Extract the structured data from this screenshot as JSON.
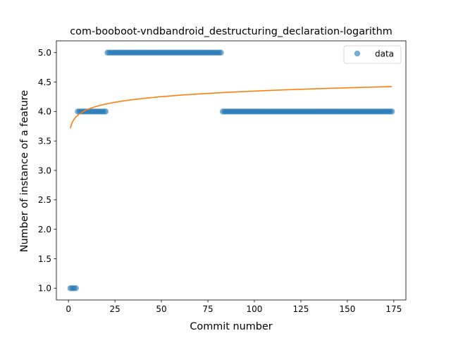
{
  "chart_data": {
    "type": "scatter",
    "title": "com-booboot-vndbandroid_destructuring_declaration-logarithm",
    "xlabel": "Commit number",
    "ylabel": "Number of instance of a feature",
    "xlim": [
      -6.5,
      181.5
    ],
    "ylim": [
      0.8,
      5.2
    ],
    "xticks": [
      0,
      25,
      50,
      75,
      100,
      125,
      150,
      175
    ],
    "yticks": [
      1.0,
      1.5,
      2.0,
      2.5,
      3.0,
      3.5,
      4.0,
      4.5,
      5.0
    ],
    "ytick_labels": [
      "1.0",
      "1.5",
      "2.0",
      "2.5",
      "3.0",
      "3.5",
      "4.0",
      "4.5",
      "5.0"
    ],
    "grid": false,
    "legend_position": "upper right",
    "series": [
      {
        "name": "data",
        "kind": "scatter",
        "color": "#1f77b4",
        "segments": [
          {
            "x_from": 1,
            "x_to": 4,
            "y": 1.0
          },
          {
            "x_from": 5,
            "x_to": 20,
            "y": 4.0
          },
          {
            "x_from": 21,
            "x_to": 82,
            "y": 5.0
          },
          {
            "x_from": 83,
            "x_to": 174,
            "y": 4.0
          }
        ]
      },
      {
        "kind": "line",
        "color": "#ff7f0e",
        "model": "logarithmic",
        "x_range": [
          1,
          174
        ],
        "a": 3.715,
        "b": 0.1372
      }
    ]
  }
}
